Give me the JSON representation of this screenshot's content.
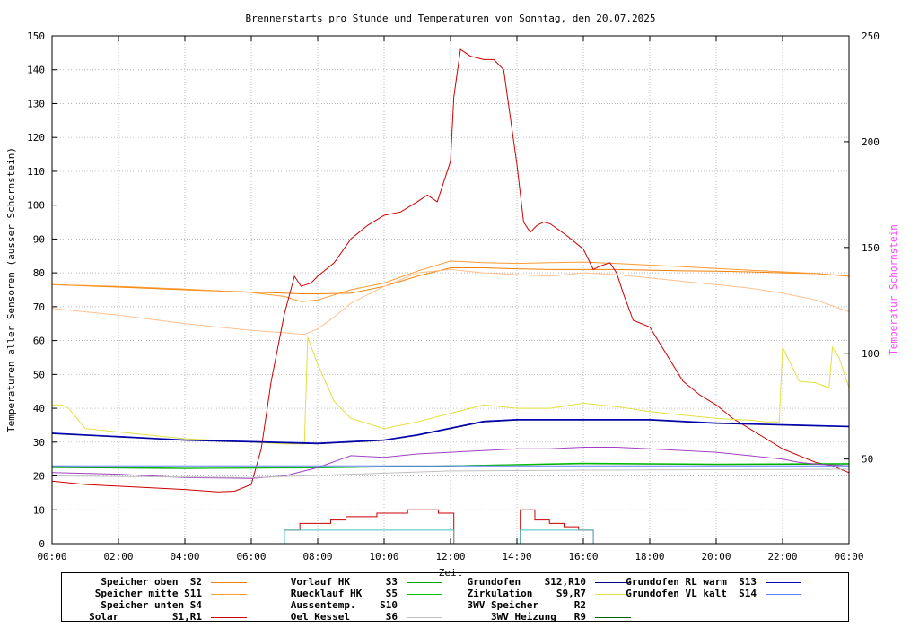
{
  "chart_data": {
    "type": "line",
    "title": "Brennerstarts pro Stunde und Temperaturen von Sonntag, den 20.07.2025",
    "xlabel": "Zeit",
    "ylabel": "Temperaturen aller Sensoren (ausser Schornstein)",
    "y2label": "Temperatur Schornstein",
    "xlim": [
      0,
      24
    ],
    "ylim": [
      0,
      150
    ],
    "y2lim": [
      10,
      250
    ],
    "grid": true,
    "x_ticks": [
      "00:00",
      "02:00",
      "04:00",
      "06:00",
      "08:00",
      "10:00",
      "12:00",
      "14:00",
      "16:00",
      "18:00",
      "20:00",
      "22:00",
      "00:00"
    ],
    "y_ticks": [
      "0",
      "10",
      "20",
      "30",
      "40",
      "50",
      "60",
      "70",
      "80",
      "90",
      "100",
      "110",
      "120",
      "130",
      "140",
      "150"
    ],
    "y2_ticks": [
      {
        "label": "50",
        "value": 50
      },
      {
        "label": "100",
        "value": 100
      },
      {
        "label": "150",
        "value": 150
      },
      {
        "label": "200",
        "value": 200
      },
      {
        "label": "250",
        "value": 250
      }
    ],
    "legend": [
      {
        "name": "Speicher oben  S2",
        "color": "#f08000"
      },
      {
        "name": "Speicher mitte S11",
        "color": "#ff9a30"
      },
      {
        "name": "Speicher unten S4",
        "color": "#ffc090"
      },
      {
        "name": "Solar         S1,R1",
        "color": "#cc0000"
      },
      {
        "name": "Vorlauf HK      S3",
        "color": "#00a000"
      },
      {
        "name": "Ruecklauf HK    S5",
        "color": "#00c000"
      },
      {
        "name": "Aussentemp.    S10",
        "color": "#a040c0"
      },
      {
        "name": "Oel Kessel      S6",
        "color": "#c0c0c0"
      },
      {
        "name": "Grundofen    S12,R10",
        "color": "#000080"
      },
      {
        "name": "Zirkulation    S9,R7",
        "color": "#e0e040"
      },
      {
        "name": "3WV Speicher      R2",
        "color": "#40c0c0"
      },
      {
        "name": "  3WV Heizung   R9",
        "color": "#006000"
      },
      {
        "name": "Grundofen RL warm  S13",
        "color": "#0000c0"
      },
      {
        "name": "Grundofen VL kalt  S14",
        "color": "#6080ff"
      }
    ],
    "series": [
      {
        "name": "Speicher oben  S2",
        "color": "#f08000",
        "axis": "y",
        "x": [
          0,
          2,
          4,
          6,
          7,
          7.5,
          8,
          9,
          10,
          11,
          12,
          13,
          14,
          15,
          16,
          17,
          18,
          19,
          20,
          21,
          22,
          23,
          24
        ],
        "y": [
          76.5,
          75.8,
          75,
          74.3,
          74,
          73.8,
          73.8,
          74,
          76,
          79,
          81.5,
          81.5,
          81.2,
          81,
          81,
          81,
          80.8,
          80.6,
          80.5,
          80.3,
          80,
          79.8,
          79
        ]
      },
      {
        "name": "Speicher mitte S11",
        "color": "#ff9a30",
        "axis": "y",
        "x": [
          0,
          2,
          4,
          6,
          7,
          7.5,
          8,
          9,
          10,
          11,
          12,
          13,
          14,
          15,
          16,
          17,
          18,
          19,
          20,
          21,
          22,
          23,
          24
        ],
        "y": [
          76.5,
          76,
          75.2,
          74.2,
          73,
          71.5,
          72,
          75,
          77,
          80.5,
          83.5,
          83,
          82.8,
          83,
          83.2,
          82.8,
          82.3,
          81.8,
          81.3,
          80.8,
          80.3,
          79.8,
          79
        ]
      },
      {
        "name": "Speicher unten S4",
        "color": "#ffc090",
        "axis": "y",
        "x": [
          0,
          2,
          4,
          6,
          7,
          7.6,
          8,
          8.5,
          9,
          10,
          11,
          12,
          13,
          14,
          15,
          16,
          17,
          18,
          19,
          20,
          21,
          22,
          23,
          24
        ],
        "y": [
          69.5,
          67.5,
          65,
          63,
          62.3,
          61.8,
          63.5,
          67,
          71,
          76,
          80,
          81,
          80,
          79.5,
          79,
          80,
          79.5,
          78.5,
          77.5,
          76.5,
          75.5,
          74,
          72,
          68.5
        ]
      },
      {
        "name": "Solar         S1,R1",
        "color": "#cc0000",
        "axis": "y",
        "x": [
          0,
          1,
          2,
          3,
          4,
          5,
          5.5,
          6,
          6.3,
          6.6,
          7,
          7.3,
          7.5,
          7.8,
          8,
          8.5,
          9,
          9.5,
          10,
          10.5,
          11,
          11.3,
          11.6,
          12,
          12.1,
          12.3,
          12.6,
          13,
          13.3,
          13.6,
          14,
          14.2,
          14.4,
          14.6,
          14.8,
          15,
          15.5,
          16,
          16.3,
          16.5,
          16.8,
          17,
          17.2,
          17.5,
          18,
          18.5,
          19,
          19.5,
          20,
          20.5,
          21,
          21.5,
          22,
          22.5,
          23,
          23.5,
          24
        ],
        "y": [
          18.5,
          17.5,
          17,
          16.5,
          16,
          15.3,
          15.5,
          17.5,
          28,
          48,
          68,
          79,
          76,
          77,
          79,
          83,
          90,
          94,
          97,
          98,
          101,
          103,
          101,
          113,
          132,
          146,
          144,
          143,
          143,
          140,
          112,
          95,
          92,
          94,
          95,
          94.5,
          91,
          87,
          81,
          82,
          83,
          80,
          74,
          66,
          64,
          56,
          48,
          44,
          41,
          37,
          34,
          31,
          28,
          26,
          24,
          23,
          21
        ]
      },
      {
        "name": "Vorlauf HK      S3",
        "color": "#00a000",
        "axis": "y",
        "x": [
          0,
          4,
          8,
          12,
          16,
          20,
          24
        ],
        "y": [
          22.5,
          22.2,
          22.5,
          23,
          23.6,
          23.4,
          23.5
        ]
      },
      {
        "name": "Ruecklauf HK    S5",
        "color": "#00c000",
        "axis": "y",
        "x": [
          0,
          4,
          8,
          12,
          16,
          20,
          24
        ],
        "y": [
          22.8,
          22.3,
          22.4,
          23,
          23.8,
          23.5,
          23.7
        ]
      },
      {
        "name": "Aussentemp.    S10",
        "color": "#a040c0",
        "axis": "y",
        "x": [
          0,
          2,
          4,
          6,
          7,
          8,
          9,
          10,
          11,
          12,
          13,
          14,
          15,
          16,
          17,
          18,
          19,
          20,
          21,
          22,
          22.5,
          23,
          24
        ],
        "y": [
          21,
          20.5,
          19.5,
          19.3,
          20,
          22.5,
          26,
          25.5,
          26.5,
          27,
          27.5,
          28,
          28,
          28.5,
          28.5,
          28,
          27.5,
          27,
          26,
          25,
          24,
          23.5,
          23
        ]
      },
      {
        "name": "Oel Kessel      S6",
        "color": "#c0c0c0",
        "axis": "y",
        "x": [
          0,
          6,
          12,
          18,
          24
        ],
        "y": [
          20,
          19.5,
          21.5,
          21.8,
          22
        ]
      },
      {
        "name": "Zirkulation    S9,R7",
        "color": "#e0e040",
        "axis": "y",
        "x": [
          0,
          0.3,
          0.5,
          1,
          2,
          3,
          4,
          5,
          6,
          7,
          7.6,
          7.7,
          8,
          8.5,
          9,
          10,
          11,
          12,
          13,
          14,
          15,
          16,
          17,
          18,
          19,
          20,
          21,
          21.5,
          21.9,
          22,
          22.5,
          23,
          23.4,
          23.5,
          23.7,
          24
        ],
        "y": [
          41,
          41,
          40,
          34,
          33,
          32,
          31,
          30.5,
          30,
          29.5,
          29.5,
          61,
          53,
          42,
          37,
          34,
          36,
          38.5,
          41,
          40,
          40,
          41.5,
          40.5,
          39,
          38,
          37,
          36.5,
          36,
          36,
          58,
          48,
          47.5,
          46,
          58,
          55,
          46
        ]
      },
      {
        "name": "Grundofen    S12,R10",
        "color": "#000080",
        "axis": "y",
        "x": [
          0,
          2,
          4,
          6,
          8,
          10,
          11,
          12,
          13,
          14,
          16,
          18,
          20,
          22,
          24
        ],
        "y": [
          32.5,
          31.5,
          30.5,
          30,
          29.5,
          30.5,
          32,
          34,
          36,
          36.5,
          36.5,
          36.5,
          35.5,
          35,
          34.5
        ]
      },
      {
        "name": "Grundofen RL warm  S13",
        "color": "#0000c0",
        "axis": "y",
        "x": [
          0,
          2,
          4,
          6,
          8,
          10,
          11,
          12,
          13,
          14,
          16,
          18,
          20,
          22,
          24
        ],
        "y": [
          32.7,
          31.7,
          30.7,
          30.2,
          29.7,
          30.7,
          32.2,
          34.2,
          36.2,
          36.7,
          36.7,
          36.7,
          35.7,
          35.2,
          34.7
        ]
      },
      {
        "name": "Grundofen VL kalt  S14",
        "color": "#6080ff",
        "axis": "y",
        "x": [
          0,
          24
        ],
        "y": [
          23,
          23
        ]
      }
    ],
    "bars": [
      {
        "name": "Brennerstarts Solar",
        "color": "#cc0000",
        "segments": [
          {
            "x0": 7.0,
            "x1": 12.1,
            "levels": [
              4,
              6,
              6,
              7,
              8,
              8,
              9,
              9,
              10,
              10,
              9
            ]
          },
          {
            "x0": 14.1,
            "x1": 16.3,
            "levels": [
              10,
              7,
              6,
              5,
              4
            ]
          }
        ]
      },
      {
        "name": "3WV Speicher R2",
        "color": "#40c0c0",
        "segments": [
          {
            "x0": 7.0,
            "x1": 12.1,
            "levels": [
              4
            ]
          },
          {
            "x0": 14.1,
            "x1": 16.3,
            "levels": [
              4
            ]
          }
        ]
      }
    ]
  }
}
